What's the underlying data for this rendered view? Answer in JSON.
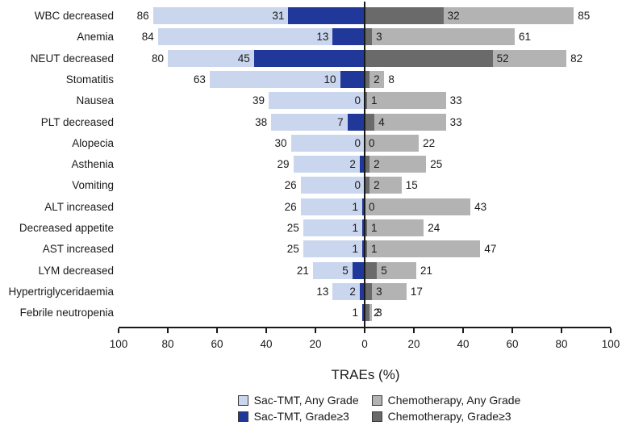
{
  "chart_data": {
    "type": "bar",
    "variant": "diverging-tornado",
    "title": "",
    "xlabel": "TRAEs (%)",
    "xlim": [
      -100,
      100
    ],
    "tick_labels": [
      "100",
      "80",
      "60",
      "40",
      "20",
      "0",
      "20",
      "40",
      "60",
      "80",
      "100"
    ],
    "grid": false,
    "legend_position": "bottom",
    "series": [
      {
        "key": "sac_any",
        "name": "Sac-TMT, Any Grade",
        "side": "left",
        "color": "#c9d6ed"
      },
      {
        "key": "sac_g3",
        "name": "Sac-TMT, Grade≥3",
        "side": "left",
        "color": "#21389b"
      },
      {
        "key": "chemo_any",
        "name": "Chemotherapy, Any Grade",
        "side": "right",
        "color": "#b3b3b3"
      },
      {
        "key": "chemo_g3",
        "name": "Chemotherapy, Grade≥3",
        "side": "right",
        "color": "#6a6a6a"
      }
    ],
    "legend": [
      {
        "label": "Sac-TMT, Any Grade",
        "color": "#c9d6ed"
      },
      {
        "label": "Chemotherapy, Any Grade",
        "color": "#b3b3b3"
      },
      {
        "label": "Sac-TMT, Grade≥3",
        "color": "#21389b"
      },
      {
        "label": "Chemotherapy, Grade≥3",
        "color": "#6a6a6a"
      }
    ],
    "rows": [
      {
        "category": "WBC decreased",
        "sac_any": 86,
        "sac_g3": 31,
        "chemo_g3": 32,
        "chemo_any": 85
      },
      {
        "category": "Anemia",
        "sac_any": 84,
        "sac_g3": 13,
        "chemo_g3": 3,
        "chemo_any": 61
      },
      {
        "category": "NEUT decreased",
        "sac_any": 80,
        "sac_g3": 45,
        "chemo_g3": 52,
        "chemo_any": 82
      },
      {
        "category": "Stomatitis",
        "sac_any": 63,
        "sac_g3": 10,
        "chemo_g3": 2,
        "chemo_any": 8
      },
      {
        "category": "Nausea",
        "sac_any": 39,
        "sac_g3": 0,
        "chemo_g3": 1,
        "chemo_any": 33
      },
      {
        "category": "PLT decreased",
        "sac_any": 38,
        "sac_g3": 7,
        "chemo_g3": 4,
        "chemo_any": 33
      },
      {
        "category": "Alopecia",
        "sac_any": 30,
        "sac_g3": 0,
        "chemo_g3": 0,
        "chemo_any": 22
      },
      {
        "category": "Asthenia",
        "sac_any": 29,
        "sac_g3": 2,
        "chemo_g3": 2,
        "chemo_any": 25
      },
      {
        "category": "Vomiting",
        "sac_any": 26,
        "sac_g3": 0,
        "chemo_g3": 2,
        "chemo_any": 15
      },
      {
        "category": "ALT increased",
        "sac_any": 26,
        "sac_g3": 1,
        "chemo_g3": 0,
        "chemo_any": 43
      },
      {
        "category": "Decreased appetite",
        "sac_any": 25,
        "sac_g3": 1,
        "chemo_g3": 1,
        "chemo_any": 24
      },
      {
        "category": "AST increased",
        "sac_any": 25,
        "sac_g3": 1,
        "chemo_g3": 1,
        "chemo_any": 47
      },
      {
        "category": "LYM decreased",
        "sac_any": 21,
        "sac_g3": 5,
        "chemo_g3": 5,
        "chemo_any": 21
      },
      {
        "category": "Hypertriglyceridaemia",
        "sac_any": 13,
        "sac_g3": 2,
        "chemo_g3": 3,
        "chemo_any": 17
      },
      {
        "category": "Febrile neutropenia",
        "sac_any": 1,
        "sac_g3": 1,
        "chemo_g3": 2,
        "chemo_any": 3,
        "hidden_labels": [
          "sac_g3"
        ]
      }
    ],
    "colors": {
      "sac_any_grade": "#c9d6ed",
      "sac_grade3": "#21389b",
      "chemo_any_grade": "#b3b3b3",
      "chemo_grade3": "#6a6a6a",
      "axis": "#1a1a1a",
      "text": "#1a1a1a",
      "background": "#ffffff"
    }
  }
}
